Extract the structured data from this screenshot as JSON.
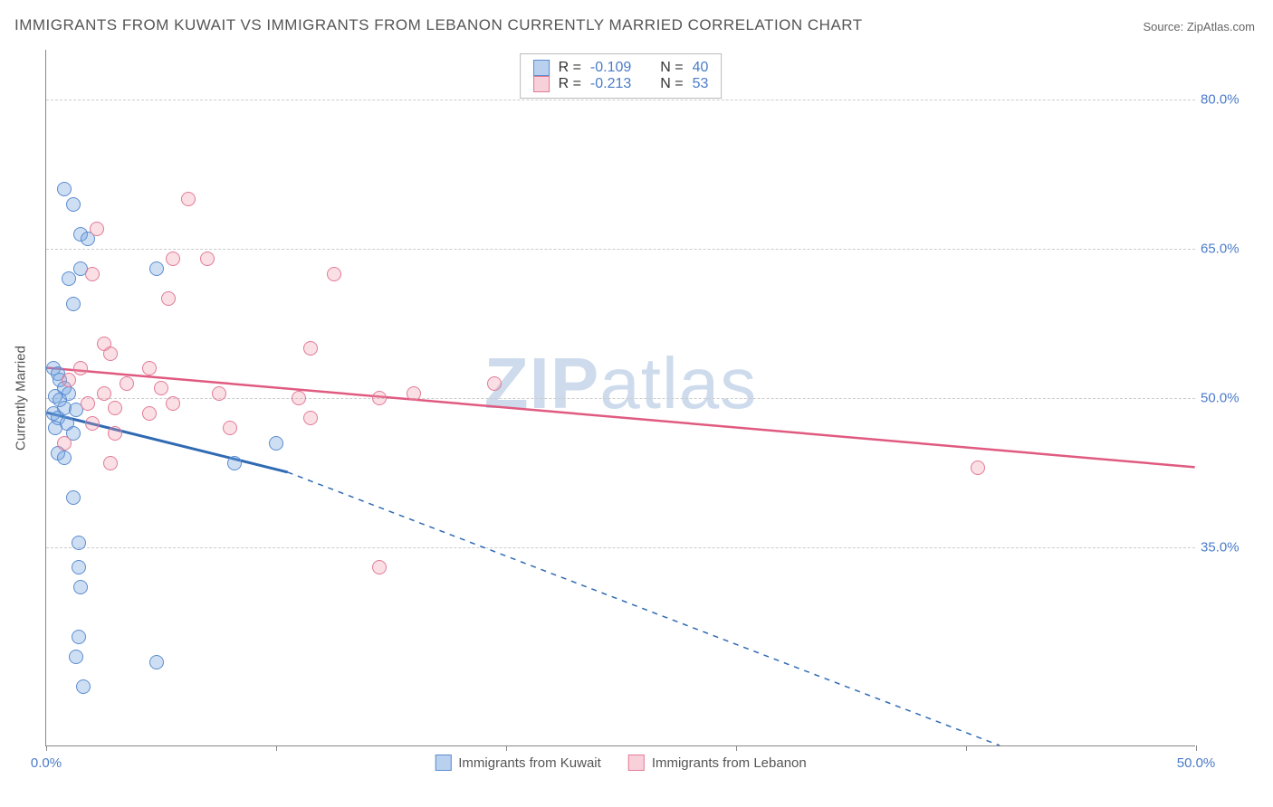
{
  "title": "IMMIGRANTS FROM KUWAIT VS IMMIGRANTS FROM LEBANON CURRENTLY MARRIED CORRELATION CHART",
  "source_label": "Source: ZipAtlas.com",
  "watermark_bold": "ZIP",
  "watermark_rest": "atlas",
  "y_axis_title": "Currently Married",
  "chart": {
    "type": "scatter",
    "background_color": "#ffffff",
    "grid_color": "#cccccc",
    "axis_color": "#888888",
    "text_color": "#555555",
    "tick_label_color": "#4a7bc8",
    "xlim": [
      0,
      50
    ],
    "ylim": [
      15,
      85
    ],
    "x_ticks": [
      0,
      10,
      20,
      30,
      40,
      50
    ],
    "x_tick_labels": [
      "0.0%",
      "",
      "",
      "",
      "",
      "50.0%"
    ],
    "y_ticks": [
      35,
      50,
      65,
      80
    ],
    "y_tick_labels": [
      "35.0%",
      "50.0%",
      "65.0%",
      "80.0%"
    ],
    "marker_radius": 8,
    "series": [
      {
        "name": "Immigrants from Kuwait",
        "color_fill": "rgba(115,163,224,0.35)",
        "color_stroke": "#5a8cd0",
        "R": "-0.109",
        "N": "40",
        "points": [
          [
            0.8,
            71
          ],
          [
            1.2,
            69.5
          ],
          [
            1.5,
            66.5
          ],
          [
            1.8,
            66
          ],
          [
            1.0,
            62
          ],
          [
            1.5,
            63
          ],
          [
            4.8,
            63
          ],
          [
            1.2,
            59.5
          ],
          [
            0.3,
            53
          ],
          [
            0.5,
            52.5
          ],
          [
            0.6,
            51.8
          ],
          [
            0.8,
            51
          ],
          [
            1.0,
            50.5
          ],
          [
            0.4,
            50.2
          ],
          [
            0.6,
            49.8
          ],
          [
            0.8,
            49
          ],
          [
            1.3,
            48.8
          ],
          [
            0.3,
            48.5
          ],
          [
            0.5,
            48
          ],
          [
            0.9,
            47.5
          ],
          [
            0.4,
            47
          ],
          [
            1.2,
            46.5
          ],
          [
            0.5,
            44.5
          ],
          [
            0.8,
            44
          ],
          [
            10.0,
            45.5
          ],
          [
            8.2,
            43.5
          ],
          [
            1.2,
            40
          ],
          [
            1.4,
            35.5
          ],
          [
            1.4,
            33
          ],
          [
            1.5,
            31
          ],
          [
            1.4,
            26
          ],
          [
            1.3,
            24
          ],
          [
            4.8,
            23.5
          ],
          [
            1.6,
            21
          ]
        ],
        "trend_line": {
          "solid_start": [
            0,
            48.5
          ],
          "solid_end": [
            10.5,
            42.5
          ],
          "dash_end": [
            41.5,
            15
          ],
          "color": "#2f6ab3",
          "width_solid": 3,
          "width_dash": 1.5,
          "dash_pattern": "6,6"
        }
      },
      {
        "name": "Immigrants from Lebanon",
        "color_fill": "rgba(240,150,170,0.3)",
        "color_stroke": "#e37a96",
        "R": "-0.213",
        "N": "53",
        "points": [
          [
            6.2,
            70
          ],
          [
            2.2,
            67
          ],
          [
            5.5,
            64
          ],
          [
            7.0,
            64
          ],
          [
            2.0,
            62.5
          ],
          [
            5.3,
            60
          ],
          [
            12.5,
            62.5
          ],
          [
            2.5,
            55.5
          ],
          [
            2.8,
            54.5
          ],
          [
            1.5,
            53
          ],
          [
            4.5,
            53
          ],
          [
            1.0,
            51.8
          ],
          [
            3.5,
            51.5
          ],
          [
            5.0,
            51
          ],
          [
            2.5,
            50.5
          ],
          [
            1.8,
            49.5
          ],
          [
            3.0,
            49
          ],
          [
            4.5,
            48.5
          ],
          [
            5.5,
            49.5
          ],
          [
            2.0,
            47.5
          ],
          [
            0.8,
            45.5
          ],
          [
            3.0,
            46.5
          ],
          [
            11.5,
            55
          ],
          [
            7.5,
            50.5
          ],
          [
            11.0,
            50
          ],
          [
            8.0,
            47
          ],
          [
            11.5,
            48
          ],
          [
            16.0,
            50.5
          ],
          [
            14.5,
            50
          ],
          [
            19.5,
            51.5
          ],
          [
            2.8,
            43.5
          ],
          [
            40.5,
            43
          ],
          [
            14.5,
            33
          ]
        ],
        "trend_line": {
          "solid_start": [
            0,
            53
          ],
          "solid_end": [
            50,
            43
          ],
          "color": "#e05a80",
          "width_solid": 2.5
        }
      }
    ]
  },
  "legend_top": {
    "rows": [
      {
        "swatch": "blue",
        "r_label": "R =",
        "r_val": "-0.109",
        "n_label": "N =",
        "n_val": "40"
      },
      {
        "swatch": "pink",
        "r_label": "R =",
        "r_val": "-0.213",
        "n_label": "N =",
        "n_val": "53"
      }
    ]
  },
  "legend_bottom": {
    "items": [
      {
        "swatch": "blue",
        "label": "Immigrants from Kuwait"
      },
      {
        "swatch": "pink",
        "label": "Immigrants from Lebanon"
      }
    ]
  }
}
